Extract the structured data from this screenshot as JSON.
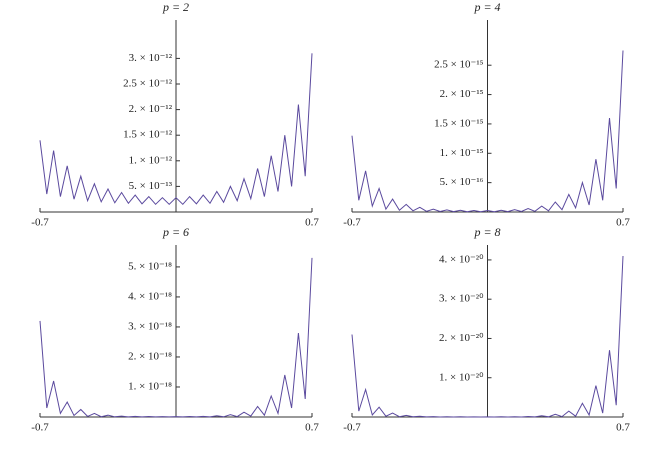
{
  "chart_data": [
    {
      "type": "line",
      "title": "p = 2",
      "color": "#5b4a9e",
      "xlim": [
        -0.7,
        0.7
      ],
      "xticks": [
        -0.7,
        0.7
      ],
      "ylim": [
        0,
        3.75e-12
      ],
      "yticks": [
        {
          "value": 5e-13,
          "label": "5. × 10⁻¹³"
        },
        {
          "value": 1e-12,
          "label": "1. × 10⁻¹²"
        },
        {
          "value": 1.5e-12,
          "label": "1.5 × 10⁻¹²"
        },
        {
          "value": 2e-12,
          "label": "2. × 10⁻¹²"
        },
        {
          "value": 2.5e-12,
          "label": "2.5 × 10⁻¹²"
        },
        {
          "value": 3e-12,
          "label": "3. × 10⁻¹²"
        }
      ],
      "x": [
        -0.7,
        -0.665,
        -0.63,
        -0.595,
        -0.56,
        -0.525,
        -0.49,
        -0.455,
        -0.42,
        -0.385,
        -0.35,
        -0.315,
        -0.28,
        -0.245,
        -0.21,
        -0.175,
        -0.14,
        -0.105,
        -0.07,
        -0.035,
        0,
        0.035,
        0.07,
        0.105,
        0.14,
        0.175,
        0.21,
        0.245,
        0.28,
        0.315,
        0.35,
        0.385,
        0.42,
        0.455,
        0.49,
        0.525,
        0.56,
        0.595,
        0.63,
        0.665,
        0.7
      ],
      "values": [
        1.4e-12,
        3.5e-13,
        1.2e-12,
        3e-13,
        9e-13,
        2.5e-13,
        7e-13,
        2.2e-13,
        5.5e-13,
        2e-13,
        4.5e-13,
        1.8e-13,
        3.8e-13,
        1.7e-13,
        3.3e-13,
        1.6e-13,
        3e-13,
        1.5e-13,
        2.8e-13,
        1.5e-13,
        2.8e-13,
        1.5e-13,
        3e-13,
        1.6e-13,
        3.3e-13,
        1.7e-13,
        4e-13,
        1.9e-13,
        5e-13,
        2.2e-13,
        6.5e-13,
        2.6e-13,
        8.5e-13,
        3e-13,
        1.1e-12,
        4e-13,
        1.5e-12,
        5e-13,
        2.1e-12,
        7e-13,
        3.1e-12
      ]
    },
    {
      "type": "line",
      "title": "p = 4",
      "color": "#5b4a9e",
      "xlim": [
        -0.7,
        0.7
      ],
      "xticks": [
        -0.7,
        0.7
      ],
      "ylim": [
        0,
        3.27e-15
      ],
      "yticks": [
        {
          "value": 5e-16,
          "label": "5. × 10⁻¹⁶"
        },
        {
          "value": 1e-15,
          "label": "1. × 10⁻¹⁵"
        },
        {
          "value": 1.5e-15,
          "label": "1.5 × 10⁻¹⁵"
        },
        {
          "value": 2e-15,
          "label": "2. × 10⁻¹⁵"
        },
        {
          "value": 2.5e-15,
          "label": "2.5 × 10⁻¹⁵"
        }
      ],
      "x": [
        -0.7,
        -0.665,
        -0.63,
        -0.595,
        -0.56,
        -0.525,
        -0.49,
        -0.455,
        -0.42,
        -0.385,
        -0.35,
        -0.315,
        -0.28,
        -0.245,
        -0.21,
        -0.175,
        -0.14,
        -0.105,
        -0.07,
        -0.035,
        0,
        0.035,
        0.07,
        0.105,
        0.14,
        0.175,
        0.21,
        0.245,
        0.28,
        0.315,
        0.35,
        0.385,
        0.42,
        0.455,
        0.49,
        0.525,
        0.56,
        0.595,
        0.63,
        0.665,
        0.7
      ],
      "values": [
        1.3e-15,
        2e-16,
        7e-16,
        1e-16,
        4e-16,
        5e-17,
        2.2e-16,
        3e-17,
        1.3e-16,
        2e-17,
        8e-17,
        1.2e-17,
        5e-17,
        8e-18,
        3.5e-17,
        6e-18,
        3e-17,
        5e-18,
        2.5e-17,
        5e-18,
        2.5e-17,
        5e-18,
        3e-17,
        6e-18,
        4e-17,
        8e-18,
        6e-17,
        1.2e-17,
        1e-16,
        2e-17,
        1.7e-16,
        4e-17,
        3e-16,
        7e-17,
        5e-16,
        1.2e-16,
        9e-16,
        2e-16,
        1.6e-15,
        4e-16,
        2.75e-15
      ]
    },
    {
      "type": "line",
      "title": "p = 6",
      "color": "#5b4a9e",
      "xlim": [
        -0.7,
        0.7
      ],
      "xticks": [
        -0.7,
        0.7
      ],
      "ylim": [
        0,
        5.73e-18
      ],
      "yticks": [
        {
          "value": 1e-18,
          "label": "1. × 10⁻¹⁸"
        },
        {
          "value": 2e-18,
          "label": "2. × 10⁻¹⁸"
        },
        {
          "value": 3e-18,
          "label": "3. × 10⁻¹⁸"
        },
        {
          "value": 4e-18,
          "label": "4. × 10⁻¹⁸"
        },
        {
          "value": 5e-18,
          "label": "5. × 10⁻¹⁸"
        }
      ],
      "x": [
        -0.7,
        -0.665,
        -0.63,
        -0.595,
        -0.56,
        -0.525,
        -0.49,
        -0.455,
        -0.42,
        -0.385,
        -0.35,
        -0.315,
        -0.28,
        -0.245,
        -0.21,
        -0.175,
        -0.14,
        -0.105,
        -0.07,
        -0.035,
        0,
        0.035,
        0.07,
        0.105,
        0.14,
        0.175,
        0.21,
        0.245,
        0.28,
        0.315,
        0.35,
        0.385,
        0.42,
        0.455,
        0.49,
        0.525,
        0.56,
        0.595,
        0.63,
        0.665,
        0.7
      ],
      "values": [
        3.2e-18,
        3e-19,
        1.2e-18,
        1.2e-19,
        5e-19,
        5e-20,
        2.5e-19,
        2e-20,
        1.2e-19,
        1e-20,
        6e-20,
        5e-21,
        3e-20,
        3e-21,
        2e-20,
        2e-21,
        1.5e-20,
        2e-21,
        1.2e-20,
        2e-21,
        1.2e-20,
        2e-21,
        1.5e-20,
        2e-21,
        2e-20,
        3e-21,
        4e-20,
        6e-21,
        8e-20,
        1.2e-20,
        1.6e-19,
        3e-20,
        3.5e-19,
        6e-20,
        7e-19,
        1.2e-19,
        1.4e-18,
        3e-19,
        2.8e-18,
        6e-19,
        5.3e-18
      ]
    },
    {
      "type": "line",
      "title": "p = 8",
      "color": "#5b4a9e",
      "xlim": [
        -0.7,
        0.7
      ],
      "xticks": [
        -0.7,
        0.7
      ],
      "ylim": [
        0,
        4.38e-20
      ],
      "yticks": [
        {
          "value": 1e-20,
          "label": "1. × 10⁻²⁰"
        },
        {
          "value": 2e-20,
          "label": "2. × 10⁻²⁰"
        },
        {
          "value": 3e-20,
          "label": "3. × 10⁻²⁰"
        },
        {
          "value": 4e-20,
          "label": "4. × 10⁻²⁰"
        }
      ],
      "x": [
        -0.7,
        -0.665,
        -0.63,
        -0.595,
        -0.56,
        -0.525,
        -0.49,
        -0.455,
        -0.42,
        -0.385,
        -0.35,
        -0.315,
        -0.28,
        -0.245,
        -0.21,
        -0.175,
        -0.14,
        -0.105,
        -0.07,
        -0.035,
        0,
        0.035,
        0.07,
        0.105,
        0.14,
        0.175,
        0.21,
        0.245,
        0.28,
        0.315,
        0.35,
        0.385,
        0.42,
        0.455,
        0.49,
        0.525,
        0.56,
        0.595,
        0.63,
        0.665,
        0.7
      ],
      "values": [
        2.1e-20,
        1.5e-21,
        7e-21,
        5e-22,
        2.5e-21,
        2e-22,
        1e-21,
        8e-23,
        4e-22,
        4e-23,
        2e-22,
        2e-23,
        1e-22,
        1e-23,
        6e-23,
        1e-23,
        4e-23,
        1e-23,
        3e-23,
        1e-23,
        3e-23,
        1e-23,
        4e-23,
        1e-23,
        6e-23,
        1e-23,
        1.2e-22,
        2e-23,
        3e-22,
        4e-23,
        7e-22,
        1e-22,
        1.5e-21,
        2e-22,
        3.5e-21,
        5e-22,
        8e-21,
        1e-21,
        1.7e-20,
        3e-21,
        4.1e-20
      ]
    }
  ]
}
